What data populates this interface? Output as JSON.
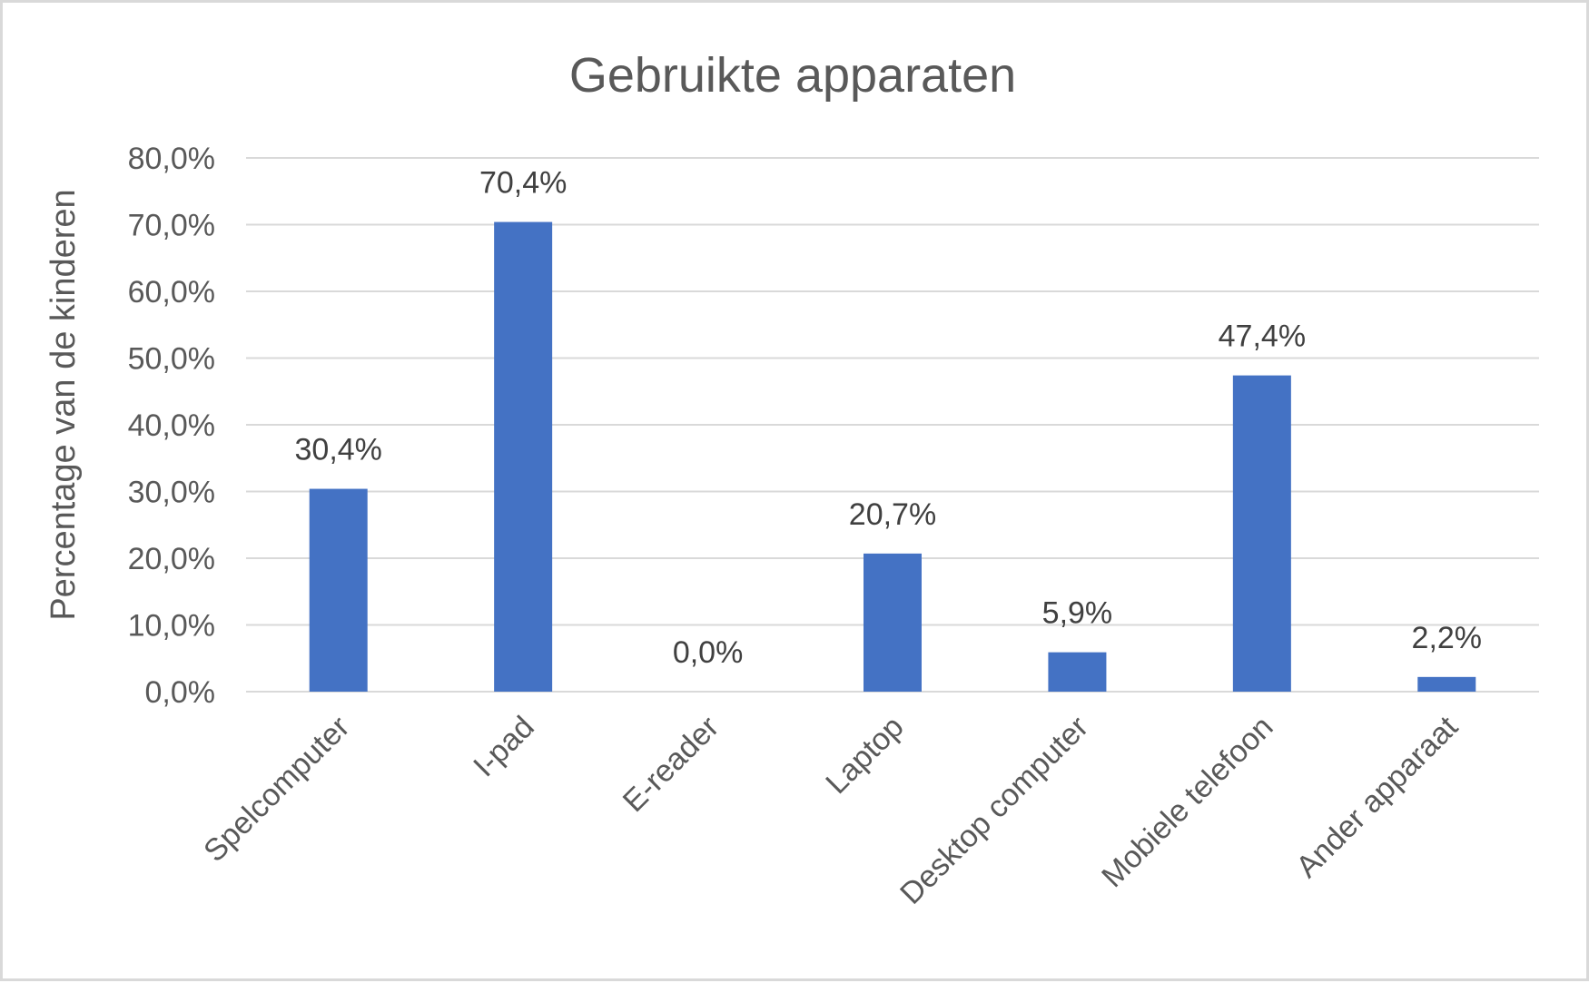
{
  "chart_data": {
    "type": "bar",
    "title": "Gebruikte apparaten",
    "xlabel": "",
    "ylabel": "Percentage van de kinderen",
    "categories": [
      "Spelcomputer",
      "I-pad",
      "E-reader",
      "Laptop",
      "Desktop computer",
      "Mobiele telefoon",
      "Ander apparaat"
    ],
    "values": [
      30.4,
      70.4,
      0.0,
      20.7,
      5.9,
      47.4,
      2.2
    ],
    "data_labels": [
      "30,4%",
      "70,4%",
      "0,0%",
      "20,7%",
      "5,9%",
      "47,4%",
      "2,2%"
    ],
    "ylim": [
      0,
      80
    ],
    "yticks": [
      0,
      10,
      20,
      30,
      40,
      50,
      60,
      70,
      80
    ],
    "ytick_labels": [
      "0,0%",
      "10,0%",
      "20,0%",
      "30,0%",
      "40,0%",
      "50,0%",
      "60,0%",
      "70,0%",
      "80,0%"
    ],
    "grid": true,
    "legend": "none",
    "bar_color": "#4472C4"
  }
}
